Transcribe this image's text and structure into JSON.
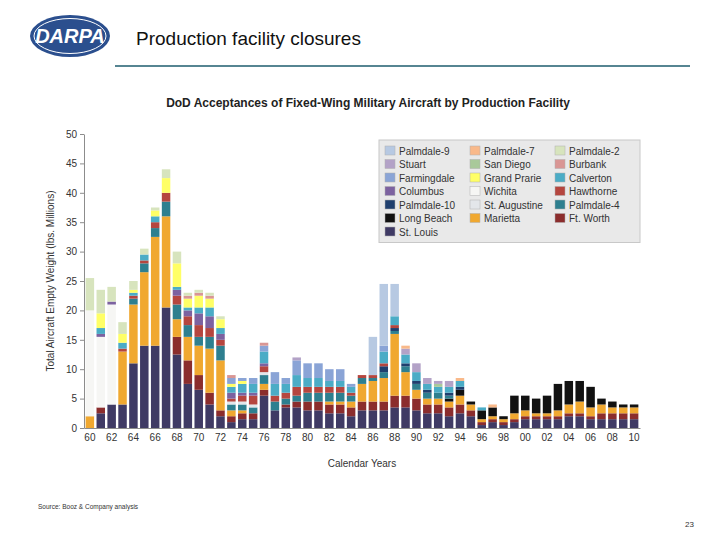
{
  "header": {
    "logo": "DARPA",
    "title": "Production facility closures"
  },
  "chart_data": {
    "type": "bar",
    "stacked": true,
    "title": "DoD Acceptances of Fixed-Wing Military Aircraft by Production Facility",
    "y_label": "Total Aircraft Empty Weight (lbs. Millions)",
    "x_label": "Calendar Years",
    "categories": [
      "60",
      null,
      "62",
      null,
      "64",
      null,
      "66",
      null,
      "68",
      null,
      "70",
      null,
      "72",
      null,
      "74",
      null,
      "76",
      null,
      "78",
      null,
      "80",
      null,
      "82",
      null,
      "84",
      null,
      "86",
      null,
      "88",
      null,
      "90",
      null,
      "92",
      null,
      "94",
      null,
      "96",
      null,
      "98",
      null,
      "00",
      null,
      "02",
      null,
      "04",
      null,
      "06",
      null,
      "08",
      null,
      "10"
    ],
    "ylim": [
      0,
      50
    ],
    "yticks": [
      0,
      5,
      10,
      15,
      20,
      25,
      30,
      35,
      40,
      45,
      50
    ],
    "grid": false,
    "legend": "top-right",
    "series": [
      {
        "name": "St. Louis",
        "color": "#3f3a64",
        "values": [
          0,
          2.5,
          4,
          4,
          11,
          14,
          14,
          20.5,
          12.5,
          7.5,
          6.5,
          4,
          2,
          1,
          1.5,
          1.5,
          5.5,
          3,
          3.5,
          3.5,
          3,
          3,
          2.5,
          2.5,
          2,
          3,
          3,
          3,
          3.5,
          3.5,
          3,
          2.5,
          2.5,
          2,
          2.5,
          2,
          0.5,
          1,
          0.5,
          1,
          1.5,
          1.5,
          1.5,
          1.5,
          2,
          2,
          1.5,
          1.5,
          1.5,
          1.5,
          1.5
        ]
      },
      {
        "name": "Ft. Worth",
        "color": "#8b2d2d",
        "values": [
          0,
          1,
          0,
          0,
          0,
          0,
          0,
          0,
          3,
          4,
          2.5,
          2,
          1,
          1,
          1,
          1,
          1,
          0,
          0.5,
          1,
          1.5,
          1.5,
          1.5,
          1.5,
          1.5,
          1.5,
          1.5,
          1.5,
          2,
          2,
          2,
          1.5,
          1.5,
          1.5,
          1.5,
          1,
          0.5,
          0.5,
          0.5,
          0.5,
          0.5,
          0.5,
          0.5,
          0.5,
          0.5,
          0.5,
          0.5,
          1,
          1,
          1,
          1
        ]
      },
      {
        "name": "Marietta",
        "color": "#f0a830",
        "values": [
          2,
          0,
          0,
          9,
          10,
          12.5,
          18.5,
          15.5,
          3,
          4,
          5,
          7.5,
          8.5,
          1,
          0.5,
          0,
          1,
          0,
          0,
          0,
          0,
          0,
          0.5,
          0.5,
          1,
          3,
          3.5,
          4,
          10.5,
          4,
          1.5,
          1,
          1,
          1,
          1.5,
          1,
          0.5,
          0.5,
          0.5,
          1,
          1,
          0.5,
          0.5,
          1,
          1.5,
          2,
          1.5,
          1.5,
          1,
          1,
          1
        ]
      },
      {
        "name": "Long Beach",
        "color": "#111111",
        "values": [
          0,
          0,
          0,
          0,
          0,
          0,
          0,
          0,
          0,
          0,
          0,
          0,
          0,
          0,
          0,
          0,
          0,
          0,
          0,
          0,
          0,
          0,
          0,
          0,
          0,
          0,
          0,
          0,
          0,
          0,
          0,
          0,
          0,
          0.5,
          1,
          0.5,
          1.5,
          1.5,
          0.5,
          3,
          2.5,
          2.5,
          3,
          4.5,
          4,
          3.5,
          3.5,
          1,
          1,
          0.5,
          0.5
        ]
      },
      {
        "name": "Palmdale-4",
        "color": "#2e7f8f",
        "values": [
          0,
          0,
          0,
          0,
          1,
          1.5,
          1.5,
          2.5,
          2.5,
          2,
          1.5,
          2,
          2.5,
          1,
          1,
          1,
          1.5,
          1.5,
          1,
          1,
          1.5,
          1.5,
          1.5,
          1.5,
          1,
          1,
          0.5,
          1,
          0.5,
          1,
          1,
          1,
          1,
          0.5,
          0,
          0,
          0,
          0,
          0,
          0,
          0,
          0,
          0,
          0,
          0,
          0,
          0,
          0,
          0,
          0,
          0
        ]
      },
      {
        "name": "St. Augustine",
        "color": "#e3e6ea",
        "values": [
          0,
          0,
          0,
          0,
          0,
          0,
          0,
          0,
          0,
          0,
          0,
          0,
          0,
          0.5,
          0.5,
          0.5,
          0.5,
          0,
          0,
          0,
          0,
          0,
          0,
          0,
          0,
          0,
          0,
          0,
          0,
          0,
          0,
          0,
          0,
          0,
          0,
          0,
          0,
          0,
          0,
          0,
          0,
          0,
          0,
          0,
          0,
          0,
          0,
          0,
          0,
          0,
          0
        ]
      },
      {
        "name": "Palmdale-10",
        "color": "#1f3f6e",
        "values": [
          0,
          0,
          0,
          0,
          0,
          0,
          0,
          0,
          0,
          0,
          0,
          0,
          0,
          0,
          0,
          0,
          0,
          0,
          0,
          0,
          0,
          0,
          0,
          0,
          0,
          0,
          0,
          1,
          0.5,
          0.5,
          0.5,
          0.5,
          0,
          0.5,
          0.5,
          0,
          0,
          0,
          0,
          0,
          0,
          0,
          0,
          0,
          0,
          0,
          0,
          0,
          0,
          0,
          0
        ]
      },
      {
        "name": "Hawthorne",
        "color": "#b5463f",
        "values": [
          0,
          0,
          0,
          0.5,
          0.5,
          0.5,
          1,
          1.5,
          1.5,
          1.5,
          2,
          1.5,
          1,
          0.5,
          1,
          1.5,
          1,
          1,
          1,
          1.5,
          1,
          1,
          1,
          1,
          0.5,
          0.5,
          0.5,
          0.5,
          0.5,
          0,
          0,
          0,
          0,
          0,
          0,
          0,
          0,
          0,
          0,
          0,
          0,
          0,
          0,
          0,
          0,
          0,
          0,
          0,
          0,
          0,
          0
        ]
      },
      {
        "name": "Wichita",
        "color": "#f6f6f4",
        "values": [
          18,
          12,
          17,
          0,
          0,
          0,
          0,
          0,
          0,
          0,
          0,
          0,
          0,
          0,
          0,
          0,
          0,
          0,
          0,
          0,
          0,
          0,
          0,
          0,
          0,
          0,
          0,
          0,
          0,
          0,
          0,
          0,
          0,
          0,
          0,
          0,
          0,
          0,
          0,
          0,
          0,
          0,
          0,
          0,
          0,
          0,
          0,
          0,
          0,
          0,
          0
        ]
      },
      {
        "name": "Columbus",
        "color": "#7c62a0",
        "values": [
          0,
          0.5,
          0.5,
          0,
          0,
          0,
          0,
          0,
          1,
          1,
          2,
          2,
          1,
          1,
          0.5,
          0.5,
          0.5,
          0,
          0,
          0,
          0,
          0,
          0,
          0,
          0,
          0,
          0,
          0,
          0,
          0,
          0,
          0,
          0,
          0,
          0,
          0,
          0,
          0,
          0,
          0,
          0,
          0,
          0,
          0,
          0,
          0,
          0,
          0,
          0,
          0,
          0
        ]
      },
      {
        "name": "Calverton",
        "color": "#4bacc6",
        "values": [
          0,
          1,
          0,
          1,
          0.5,
          1,
          1,
          0,
          0.5,
          0.5,
          1,
          1.5,
          1,
          1,
          1.5,
          1.5,
          2,
          2,
          1.5,
          2,
          1.5,
          1.5,
          1,
          1,
          1,
          0,
          0,
          2,
          1.5,
          1.5,
          1.5,
          1,
          1,
          1,
          1,
          0,
          0.5,
          0,
          0,
          0,
          0,
          0,
          0,
          0,
          0,
          0,
          0,
          0,
          0,
          0,
          0
        ]
      },
      {
        "name": "Grand Prarie",
        "color": "#ffff66",
        "values": [
          0,
          2.5,
          0,
          1.5,
          0.5,
          0,
          1,
          2.5,
          4,
          1.5,
          2,
          1.5,
          1.5,
          0.5,
          0.5,
          0,
          0,
          0,
          0,
          0,
          0,
          0,
          0,
          0,
          0,
          0,
          0,
          0,
          0,
          0,
          0,
          0,
          0,
          0,
          0,
          0,
          0,
          0,
          0,
          0,
          0,
          0,
          0,
          0,
          0,
          0,
          0,
          0,
          0,
          0,
          0
        ]
      },
      {
        "name": "Farmingdale",
        "color": "#8aa4d6",
        "values": [
          0,
          0,
          0,
          0,
          0,
          0,
          0,
          0,
          0,
          0,
          0,
          0,
          0,
          1,
          0.5,
          1,
          1,
          2,
          1,
          2.5,
          2.5,
          2.5,
          2,
          2,
          0.5,
          0,
          0,
          1,
          0,
          0,
          0,
          0,
          0,
          0,
          0,
          0,
          0,
          0,
          0,
          0,
          0,
          0,
          0,
          0,
          0,
          0,
          0,
          0,
          0,
          0,
          0
        ]
      },
      {
        "name": "Burbank",
        "color": "#d99694",
        "values": [
          0,
          0,
          0,
          0,
          0,
          0,
          0,
          0,
          0,
          0.5,
          0.5,
          0.5,
          0,
          0.5,
          0,
          0,
          0.5,
          0,
          0,
          0,
          0,
          0,
          0,
          0,
          0,
          0,
          0,
          0,
          0,
          0,
          0,
          0,
          0,
          0,
          0,
          0,
          0,
          0,
          0,
          0,
          0,
          0,
          0,
          0,
          0,
          0,
          0,
          0,
          0,
          0,
          0
        ]
      },
      {
        "name": "San Diego",
        "color": "#a9c99a",
        "values": [
          0,
          0,
          0,
          0,
          0,
          0,
          0,
          0,
          0,
          0,
          0,
          0,
          0,
          0,
          0,
          0,
          0,
          0,
          0,
          0,
          0,
          0,
          0,
          0,
          0,
          0,
          0,
          0,
          0,
          0,
          0,
          0,
          0.5,
          0,
          0,
          0,
          0,
          0,
          0,
          0,
          0,
          0,
          0,
          0,
          0,
          0,
          0,
          0,
          0,
          0,
          0
        ]
      },
      {
        "name": "Stuart",
        "color": "#b3a2c7",
        "values": [
          0,
          0,
          0,
          0,
          0,
          0,
          0,
          0,
          0,
          0,
          0,
          0,
          0,
          0,
          0,
          0,
          0,
          0,
          0,
          0.5,
          0,
          0,
          0,
          0,
          0,
          0,
          0,
          0,
          0,
          1,
          1.5,
          1,
          0.5,
          1,
          0,
          0,
          0,
          0,
          0,
          0,
          0,
          0,
          0,
          0,
          0,
          0,
          0,
          0,
          0,
          0,
          0
        ]
      },
      {
        "name": "Palmdale-2",
        "color": "#d7e4bd",
        "values": [
          5.5,
          4,
          2.5,
          2,
          1.5,
          1,
          0.5,
          1.5,
          2,
          0.5,
          0.5,
          0.5,
          0.5,
          0,
          0,
          0,
          0,
          0,
          0,
          0,
          0,
          0,
          0,
          0,
          0,
          0,
          0,
          0,
          0,
          0,
          0,
          0,
          0,
          0,
          0,
          0,
          0,
          0,
          0,
          0,
          0,
          0,
          0,
          0,
          0,
          0,
          0,
          0,
          0,
          0,
          0
        ]
      },
      {
        "name": "Palmdale-7",
        "color": "#f9b98a",
        "values": [
          0,
          0,
          0,
          0,
          0,
          0,
          0,
          0,
          0,
          0,
          0,
          0,
          0,
          0,
          0,
          0,
          0,
          0,
          0,
          0,
          0,
          0,
          0,
          0,
          0,
          0,
          0,
          0,
          0,
          0.5,
          0,
          0,
          0,
          0,
          0.5,
          0,
          0,
          0.5,
          0,
          0,
          0,
          0,
          0,
          0,
          0,
          0,
          0,
          0,
          0,
          0,
          0
        ]
      },
      {
        "name": "Palmdale-9",
        "color": "#b7c9e2",
        "values": [
          0,
          0,
          0,
          0,
          0,
          0,
          0,
          0,
          0,
          0,
          0,
          0,
          0,
          0,
          0,
          0,
          0,
          0,
          0,
          0,
          0,
          0,
          0,
          0,
          0,
          0,
          6.5,
          10.5,
          5.5,
          0,
          0,
          0,
          0,
          0,
          0,
          0,
          0,
          0,
          0,
          0,
          0,
          0,
          0,
          0,
          0,
          0,
          0,
          0,
          0,
          0,
          0
        ]
      }
    ]
  },
  "footer": {
    "source": "Source: Booz & Company analysis",
    "page": "23"
  }
}
